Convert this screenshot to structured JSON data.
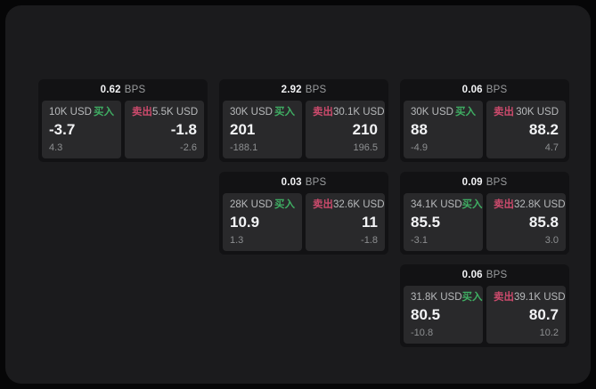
{
  "labels": {
    "buy": "买入",
    "sell": "卖出",
    "bps": "BPS"
  },
  "colors": {
    "page-bg": "#060607",
    "surface": "#1b1b1d",
    "card": "#121214",
    "pane": "#29292b",
    "buy": "#3fae63",
    "sell": "#cb4a6c",
    "text-primary": "#f2f3f5",
    "text-label": "#b7b9bb",
    "text-muted": "#8d8f91"
  },
  "cards": [
    {
      "bps": "0.62",
      "buy": {
        "amount": "10K USD",
        "value": "-3.7",
        "sub": "4.3"
      },
      "sell": {
        "amount": "5.5K USD",
        "value": "-1.8",
        "sub": "-2.6"
      }
    },
    {
      "bps": "2.92",
      "buy": {
        "amount": "30K USD",
        "value": "201",
        "sub": "-188.1"
      },
      "sell": {
        "amount": "30.1K USD",
        "value": "210",
        "sub": "196.5"
      }
    },
    {
      "bps": "0.06",
      "buy": {
        "amount": "30K USD",
        "value": "88",
        "sub": "-4.9"
      },
      "sell": {
        "amount": "30K USD",
        "value": "88.2",
        "sub": "4.7"
      }
    },
    {
      "bps": "0.03",
      "buy": {
        "amount": "28K USD",
        "value": "10.9",
        "sub": "1.3"
      },
      "sell": {
        "amount": "32.6K USD",
        "value": "11",
        "sub": "-1.8"
      }
    },
    {
      "bps": "0.09",
      "buy": {
        "amount": "34.1K USD",
        "value": "85.5",
        "sub": "-3.1"
      },
      "sell": {
        "amount": "32.8K USD",
        "value": "85.8",
        "sub": "3.0"
      }
    },
    {
      "bps": "0.06",
      "buy": {
        "amount": "31.8K USD",
        "value": "80.5",
        "sub": "-10.8"
      },
      "sell": {
        "amount": "39.1K USD",
        "value": "80.7",
        "sub": "10.2"
      }
    }
  ]
}
